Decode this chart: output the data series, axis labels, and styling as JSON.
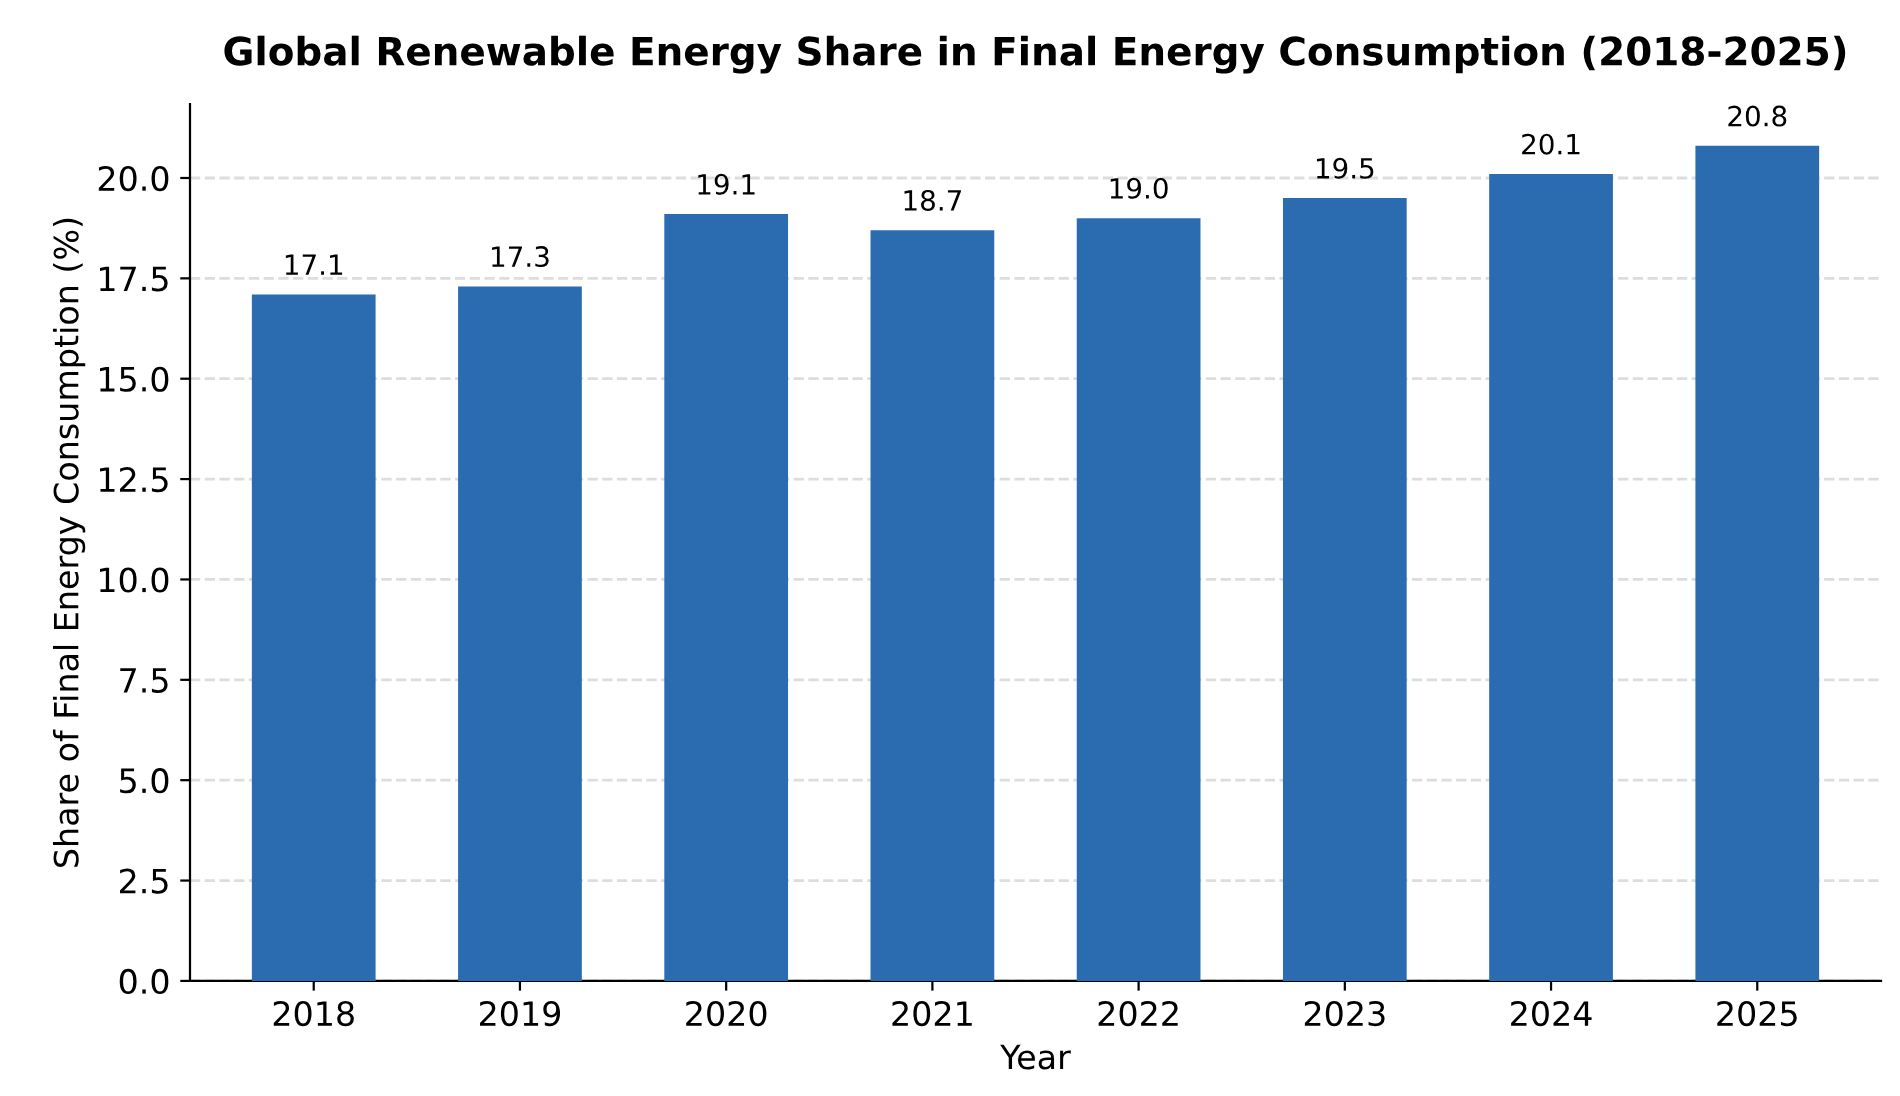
{
  "chart_data": {
    "type": "bar",
    "title": "Global Renewable Energy Share in Final Energy Consumption (2018-2025)",
    "xlabel": "Year",
    "ylabel": "Share of Final Energy Consumption (%)",
    "categories": [
      "2018",
      "2019",
      "2020",
      "2021",
      "2022",
      "2023",
      "2024",
      "2025"
    ],
    "values": [
      17.1,
      17.3,
      19.1,
      18.7,
      19.0,
      19.5,
      20.1,
      20.8
    ],
    "value_labels": [
      "17.1",
      "17.3",
      "19.1",
      "18.7",
      "19.0",
      "19.5",
      "20.1",
      "20.8"
    ],
    "color": "#2b6cb0",
    "grid": "y",
    "ylim": [
      0,
      21.84
    ],
    "yticks": [
      {
        "value": 0,
        "label": "0.0"
      },
      2.5,
      {
        "value": 5,
        "label": "5.0"
      },
      7.5,
      {
        "value": 10,
        "label": "10.0"
      },
      12.5,
      {
        "value": 15,
        "label": "15.0"
      },
      17.5,
      {
        "value": 20,
        "label": "20.0"
      }
    ]
  }
}
